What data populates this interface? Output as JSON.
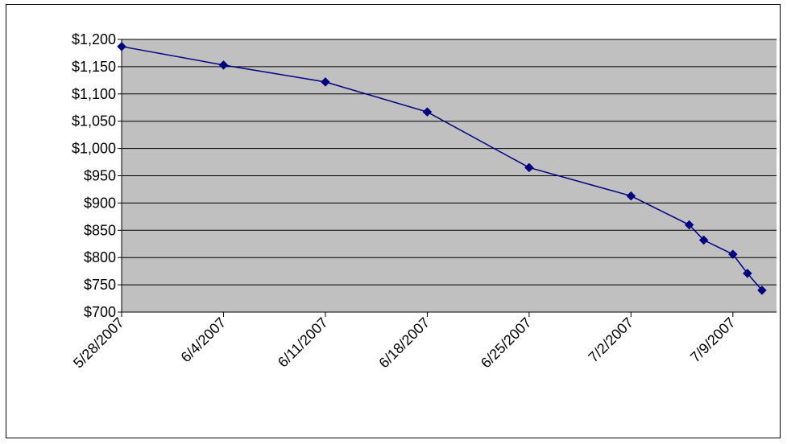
{
  "chart_data": {
    "type": "line",
    "title": "",
    "xlabel": "",
    "ylabel": "",
    "x_tick_labels": [
      "5/28/2007",
      "6/4/2007",
      "6/11/2007",
      "6/18/2007",
      "6/25/2007",
      "7/2/2007",
      "7/9/2007"
    ],
    "y_tick_labels": [
      "$700",
      "$750",
      "$800",
      "$850",
      "$900",
      "$950",
      "$1,000",
      "$1,050",
      "$1,100",
      "$1,150",
      "$1,200"
    ],
    "xlim": [
      "5/28/2007",
      "7/12/2007"
    ],
    "ylim": [
      700,
      1200
    ],
    "y_major_unit": 50,
    "grid": true,
    "legend": "none",
    "plot_background": "#c0c0c0",
    "series": [
      {
        "color": "#000080",
        "marker": "diamond",
        "points": [
          {
            "x": "5/28/2007",
            "y": 1187
          },
          {
            "x": "6/4/2007",
            "y": 1153
          },
          {
            "x": "6/11/2007",
            "y": 1122
          },
          {
            "x": "6/18/2007",
            "y": 1067
          },
          {
            "x": "6/25/2007",
            "y": 965
          },
          {
            "x": "7/2/2007",
            "y": 913
          },
          {
            "x": "7/6/2007",
            "y": 860
          },
          {
            "x": "7/7/2007",
            "y": 832
          },
          {
            "x": "7/9/2007",
            "y": 806
          },
          {
            "x": "7/10/2007",
            "y": 771
          },
          {
            "x": "7/11/2007",
            "y": 740
          }
        ]
      }
    ]
  }
}
